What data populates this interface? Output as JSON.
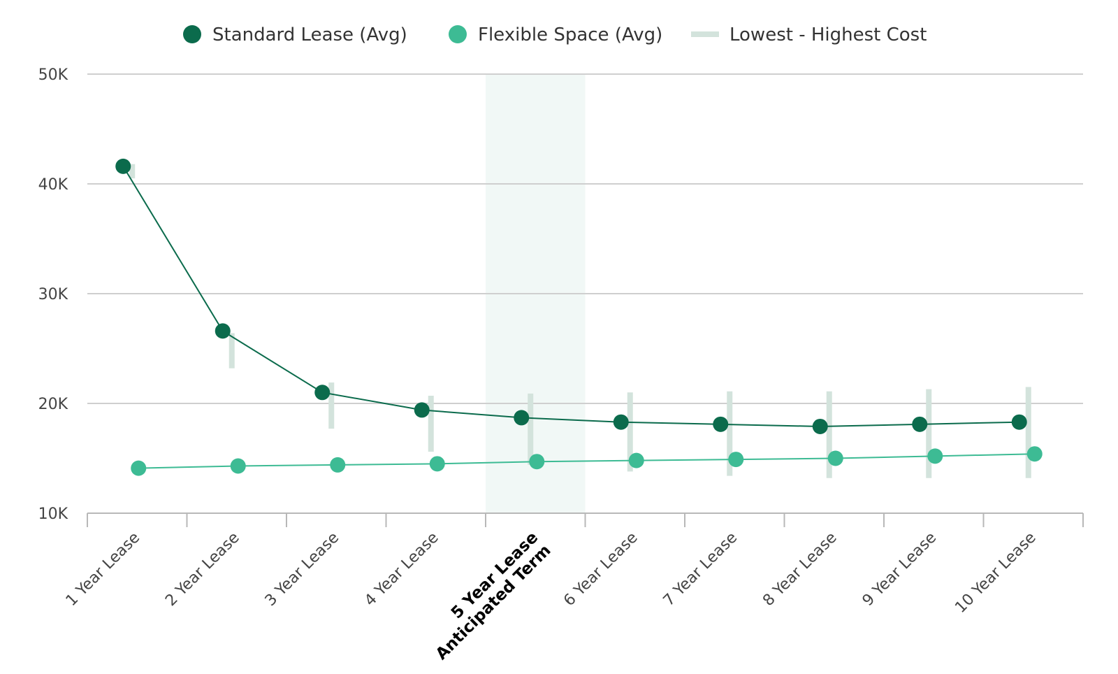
{
  "chart_data": {
    "type": "line",
    "categories": [
      "1 Year Lease",
      "2 Year Lease",
      "3 Year Lease",
      "4 Year Lease",
      "5 Year Lease\nAnticipated Term",
      "6 Year Lease",
      "7 Year Lease",
      "8 Year Lease",
      "9 Year Lease",
      "10 Year Lease"
    ],
    "highlighted_category": "5 Year Lease\nAnticipated Term",
    "series": [
      {
        "name": "Standard Lease (Avg)",
        "color": "#0b6b4c",
        "values": [
          41600,
          26600,
          21000,
          19400,
          18700,
          18300,
          18100,
          17900,
          18100,
          18300
        ]
      },
      {
        "name": "Flexible Space (Avg)",
        "color": "#3dbb94",
        "values": [
          14100,
          14300,
          14400,
          14500,
          14700,
          14800,
          14900,
          15000,
          15200,
          15400
        ]
      }
    ],
    "range_series": {
      "name": "Lowest - Highest Cost",
      "color": "#d3e3dc",
      "ranges": [
        [
          40500,
          41800
        ],
        [
          23200,
          26400
        ],
        [
          17700,
          21900
        ],
        [
          15600,
          20700
        ],
        [
          14400,
          20900
        ],
        [
          13800,
          21000
        ],
        [
          13400,
          21100
        ],
        [
          13200,
          21100
        ],
        [
          13200,
          21300
        ],
        [
          13200,
          21500
        ]
      ]
    },
    "ylim": [
      10000,
      50000
    ],
    "yticks": [
      {
        "value": 10000,
        "label": "10K"
      },
      {
        "value": 20000,
        "label": "20K"
      },
      {
        "value": 30000,
        "label": "30K"
      },
      {
        "value": 40000,
        "label": "40K"
      },
      {
        "value": 50000,
        "label": "50K"
      }
    ],
    "grid": true,
    "legend_position": "top",
    "highlight_color": "#f1f8f6",
    "axis_color": "#b8b8b8"
  }
}
